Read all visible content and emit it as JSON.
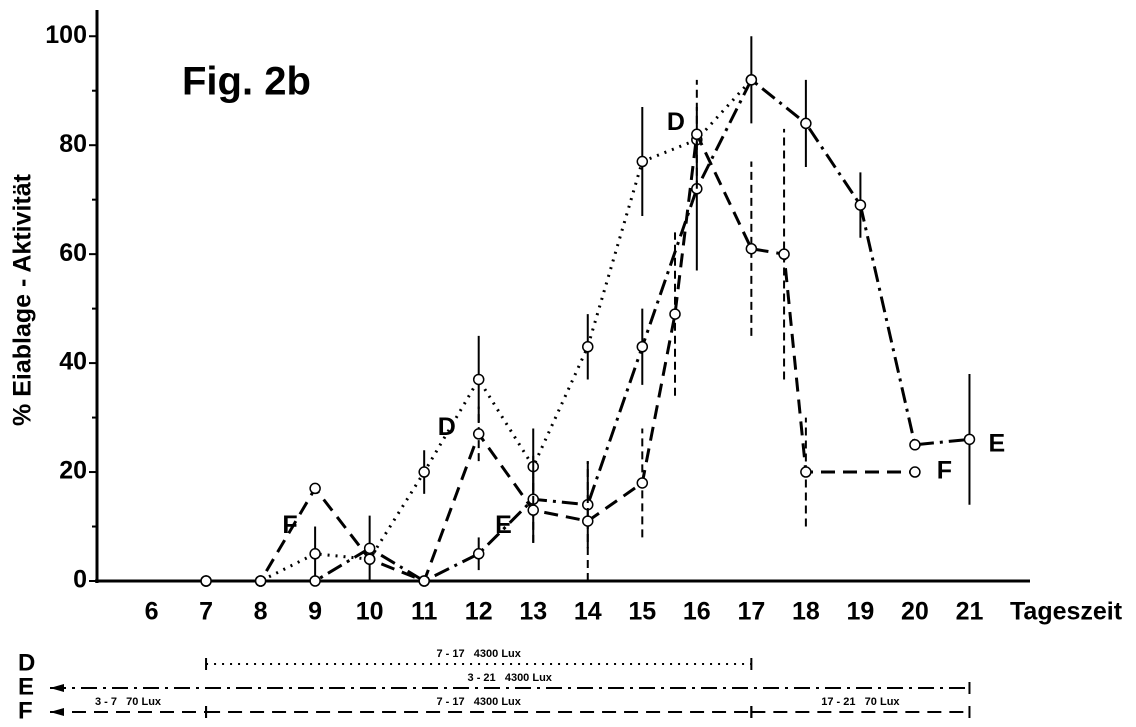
{
  "chart_data": {
    "type": "line",
    "title": "Fig. 2b",
    "y_label": "% Eiablage - Aktivität",
    "x_label": "Tageszeit",
    "xlim": [
      5,
      22
    ],
    "ylim": [
      0,
      105
    ],
    "xticks": [
      6,
      7,
      8,
      9,
      10,
      11,
      12,
      13,
      14,
      15,
      16,
      17,
      18,
      19,
      20,
      21
    ],
    "yticks": [
      0,
      20,
      40,
      60,
      80,
      100
    ],
    "yticks_minor": [
      10,
      30,
      50,
      70,
      90
    ],
    "series": [
      {
        "name": "D",
        "color": "#000000",
        "line_style": "dotted",
        "x": [
          7,
          8,
          9,
          10,
          11,
          12,
          13,
          14,
          15,
          16,
          17
        ],
        "values": [
          0,
          0,
          5,
          4,
          20,
          37,
          21,
          43,
          77,
          81,
          92
        ],
        "errors": [
          null,
          null,
          5,
          null,
          4,
          8,
          7,
          6,
          10,
          null,
          null
        ]
      },
      {
        "name": "E",
        "color": "#000000",
        "line_style": "dashdot",
        "x": [
          7,
          8,
          9,
          10,
          11,
          12,
          13,
          14,
          15,
          16,
          17,
          18,
          19,
          20,
          21
        ],
        "values": [
          0,
          0,
          0,
          6,
          0,
          5,
          15,
          14,
          43,
          72,
          92,
          84,
          69,
          25,
          26
        ],
        "errors": [
          null,
          null,
          null,
          6,
          null,
          3,
          8,
          8,
          7,
          15,
          8,
          8,
          6,
          null,
          12
        ]
      },
      {
        "name": "F",
        "color": "#000000",
        "line_style": "dashed",
        "x": [
          7,
          8,
          9,
          10,
          11,
          12,
          13,
          14,
          15,
          15.6,
          16,
          17,
          17.6,
          18,
          20
        ],
        "values": [
          0,
          0,
          17,
          4,
          0,
          27,
          13,
          11,
          18,
          49,
          82,
          61,
          60,
          20,
          20
        ],
        "errors": [
          null,
          null,
          null,
          null,
          null,
          5,
          6,
          11,
          10,
          15,
          10,
          16,
          23,
          10,
          null
        ]
      }
    ],
    "light_schedule": [
      {
        "series": "D",
        "segments": [
          {
            "from": 7,
            "to": 17,
            "label": "7 - 17   4300 Lux"
          }
        ]
      },
      {
        "series": "E",
        "segments": [
          {
            "from": 3,
            "to": 21,
            "label": "3 - 21   4300 Lux"
          }
        ]
      },
      {
        "series": "F",
        "segments": [
          {
            "from": 3,
            "to": 7,
            "label": "3 - 7   70 Lux"
          },
          {
            "from": 7,
            "to": 17,
            "label": "7 - 17   4300 Lux"
          },
          {
            "from": 17,
            "to": 21,
            "label": "17 - 21   70 Lux"
          }
        ]
      }
    ]
  }
}
